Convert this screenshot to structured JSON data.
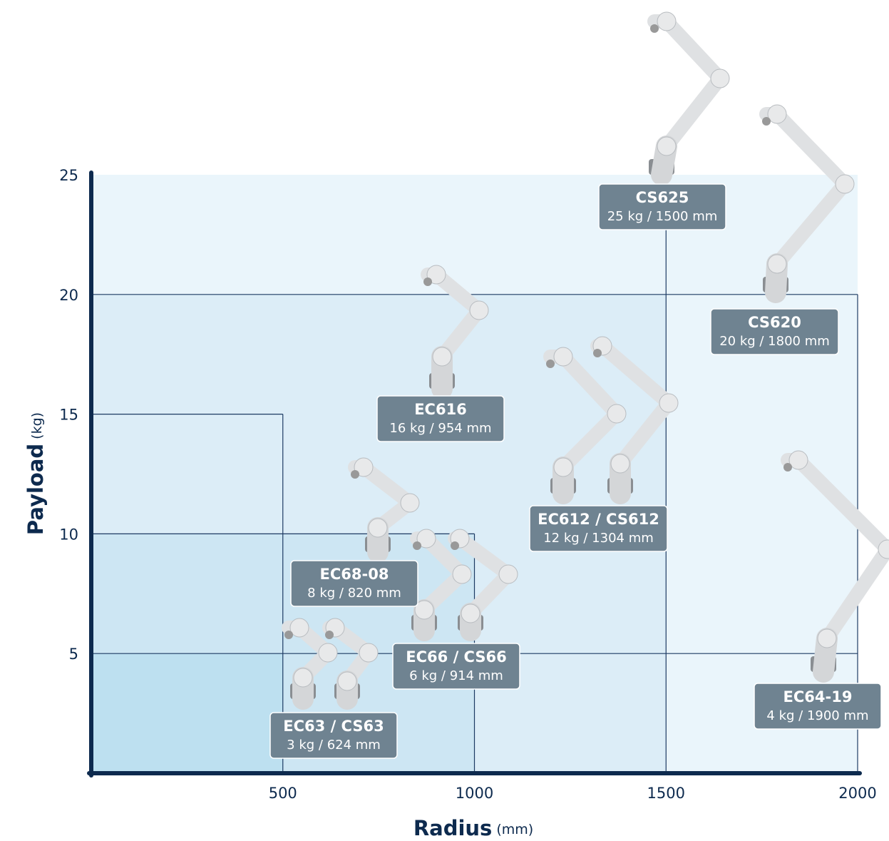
{
  "chart_data": {
    "type": "zone-map",
    "x_label": "Radius",
    "x_unit": "(mm)",
    "y_label": "Payload",
    "y_unit": "(kg)",
    "xlim": [
      0,
      2000
    ],
    "ylim": [
      0,
      25
    ],
    "xticks": [
      500,
      1000,
      1500,
      2000
    ],
    "yticks": [
      5,
      10,
      15,
      20,
      25
    ],
    "zones": [
      {
        "x": 2000,
        "y": 25,
        "color": "#eaf5fb"
      },
      {
        "x": 1500,
        "y": 20,
        "color": "#dcedf7"
      },
      {
        "x": 1000,
        "y": 10,
        "color": "#cde6f3"
      },
      {
        "x": 500,
        "y": 5,
        "color": "#bde0f0"
      }
    ],
    "hlines": [
      {
        "y": 5,
        "x_end": 2000
      },
      {
        "y": 10,
        "x_end": 1000
      },
      {
        "y": 15,
        "x_end": 500
      },
      {
        "y": 20,
        "x_end": 2000
      }
    ],
    "vlines": [
      {
        "x": 500,
        "y_end": 15
      },
      {
        "x": 1000,
        "y_end": 10
      },
      {
        "x": 1500,
        "y_end": 25
      },
      {
        "x": 2000,
        "y_end": 20
      }
    ],
    "products": [
      {
        "name": "CS625",
        "spec": "25 kg / 1500 mm"
      },
      {
        "name": "CS620",
        "spec": "20 kg / 1800 mm"
      },
      {
        "name": "EC616",
        "spec": "16 kg / 954 mm"
      },
      {
        "name": "EC612 / CS612",
        "spec": "12 kg / 1304 mm"
      },
      {
        "name": "EC68-08",
        "spec": "8 kg / 820 mm"
      },
      {
        "name": "EC66 / CS66",
        "spec": "6 kg / 914 mm"
      },
      {
        "name": "EC63 / CS63",
        "spec": "3 kg / 624 mm"
      },
      {
        "name": "EC64-19",
        "spec": "4 kg / 1900 mm"
      }
    ],
    "box_color": "#6f8391",
    "axis_color": "#0d2a4e",
    "line_color": "#1d3b63"
  }
}
